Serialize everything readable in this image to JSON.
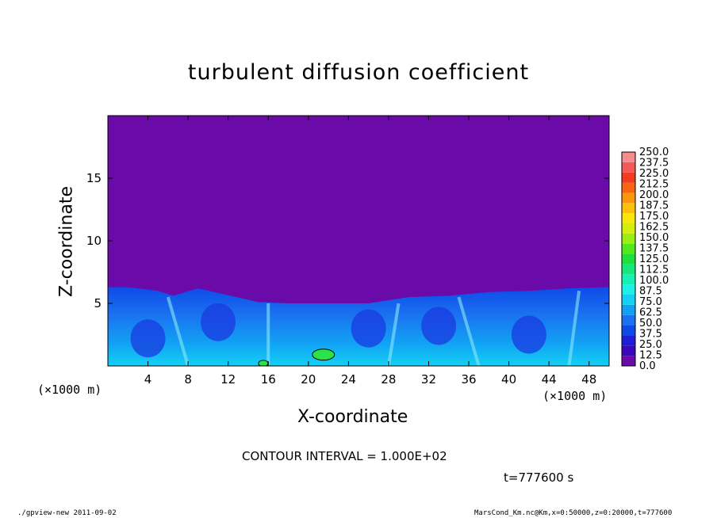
{
  "chart_data": {
    "type": "heatmap",
    "title": "turbulent diffusion coefficient",
    "xlabel": "X-coordinate",
    "ylabel": "Z-coordinate",
    "x_unit_label": "(×1000 m)",
    "xlim": [
      0,
      50
    ],
    "ylim": [
      0,
      20
    ],
    "x_ticks": [
      4,
      8,
      12,
      16,
      20,
      24,
      28,
      32,
      36,
      40,
      44,
      48
    ],
    "y_ticks": [
      5,
      10,
      15
    ],
    "colorbar": {
      "levels": [
        "0.0",
        "12.5",
        "25.0",
        "37.5",
        "50.0",
        "62.5",
        "75.0",
        "87.5",
        "100.0",
        "112.5",
        "125.0",
        "137.5",
        "150.0",
        "162.5",
        "175.0",
        "187.5",
        "200.0",
        "212.5",
        "225.0",
        "237.5",
        "250.0"
      ],
      "colors": [
        "#6a0aa8",
        "#3a08b8",
        "#1e1ed8",
        "#0e4ae8",
        "#1a72f0",
        "#12a0f4",
        "#14d0f4",
        "#1ef0e8",
        "#18f0b4",
        "#14e87a",
        "#1ee03a",
        "#52e81e",
        "#9aee12",
        "#d4ee0c",
        "#fae60a",
        "#fcc00a",
        "#fc9410",
        "#fa6410",
        "#f23c22",
        "#f25a5a",
        "#f78c8c"
      ]
    },
    "turbulent_layer_top_z": [
      6.3,
      6.3,
      6.0,
      5.6,
      6.2,
      5.1,
      5.0,
      5.0,
      5.0,
      5.5,
      5.6,
      5.9,
      6.0,
      6.2,
      6.3
    ],
    "turbulent_layer_top_x": [
      0,
      2,
      5,
      6.5,
      9,
      15,
      18,
      22,
      26,
      30,
      34,
      38,
      42,
      46,
      50
    ],
    "max_region": {
      "x": [
        14,
        24
      ],
      "z": [
        0,
        1.5
      ]
    }
  },
  "contour_interval": "CONTOUR INTERVAL = 1.000E+02",
  "time_label": "t=777600 s",
  "footer_left": "./gpview-new   2011-09-02",
  "footer_right": "MarsCond_Km.nc@Km,x=0:50000,z=0:20000,t=777600"
}
